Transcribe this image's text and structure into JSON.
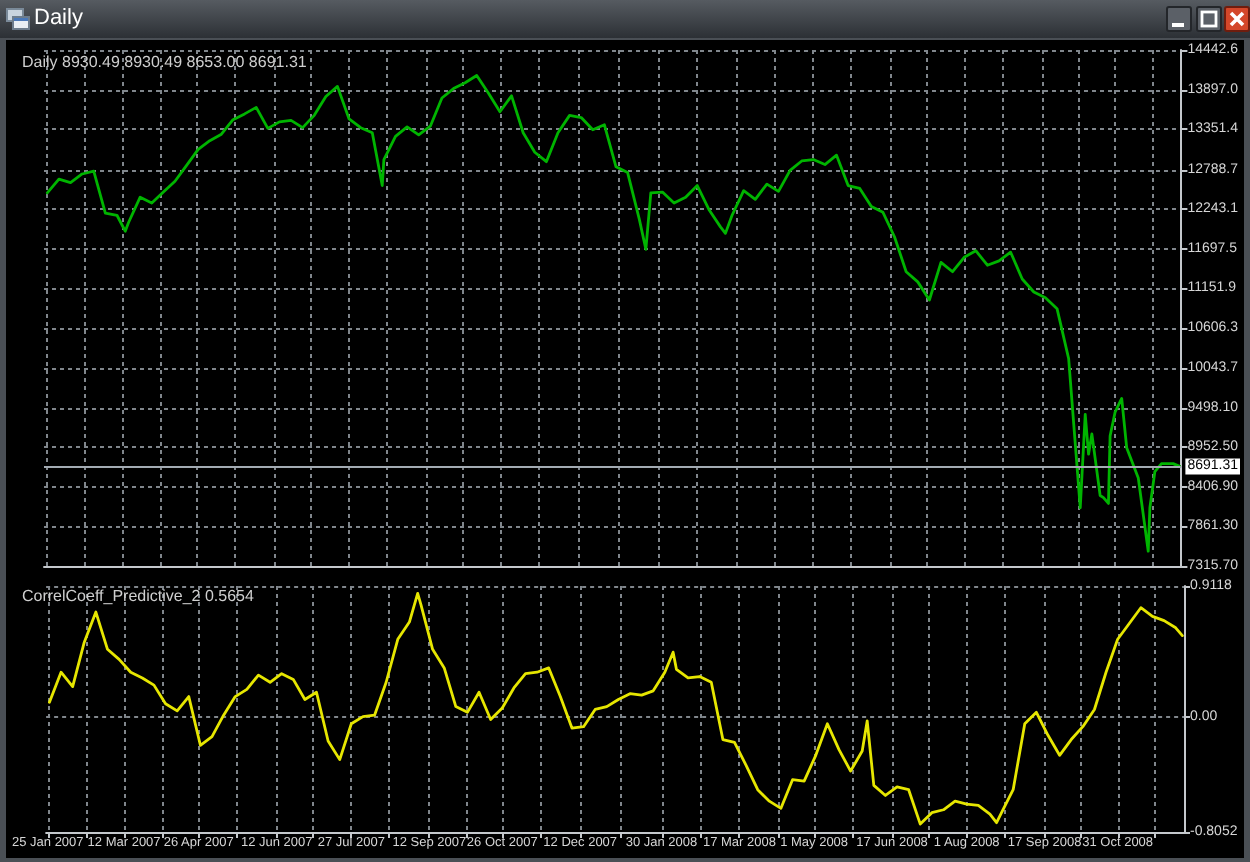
{
  "chart_data": [
    {
      "type": "line",
      "title": "Daily 8930.49 8930.49 8653.00 8691.31",
      "annotations": [
        "Daily"
      ],
      "x": [
        "2007-01-26",
        "2007-02-02",
        "2007-02-09",
        "2007-02-16",
        "2007-02-23",
        "2007-03-02",
        "2007-03-09",
        "2007-03-14",
        "2007-03-16",
        "2007-03-23",
        "2007-03-30",
        "2007-04-06",
        "2007-04-13",
        "2007-04-20",
        "2007-04-27",
        "2007-05-04",
        "2007-05-11",
        "2007-05-18",
        "2007-05-25",
        "2007-06-01",
        "2007-06-08",
        "2007-06-15",
        "2007-06-22",
        "2007-06-29",
        "2007-07-06",
        "2007-07-13",
        "2007-07-20",
        "2007-07-27",
        "2007-08-03",
        "2007-08-10",
        "2007-08-16",
        "2007-08-17",
        "2007-08-24",
        "2007-08-31",
        "2007-09-07",
        "2007-09-14",
        "2007-09-21",
        "2007-09-28",
        "2007-10-05",
        "2007-10-12",
        "2007-10-19",
        "2007-10-26",
        "2007-11-02",
        "2007-11-09",
        "2007-11-16",
        "2007-11-23",
        "2007-11-30",
        "2007-12-07",
        "2007-12-14",
        "2007-12-21",
        "2007-12-28",
        "2008-01-04",
        "2008-01-11",
        "2008-01-18",
        "2008-01-22",
        "2008-01-25",
        "2008-02-01",
        "2008-02-08",
        "2008-02-15",
        "2008-02-22",
        "2008-02-29",
        "2008-03-07",
        "2008-03-10",
        "2008-03-14",
        "2008-03-21",
        "2008-03-28",
        "2008-04-04",
        "2008-04-11",
        "2008-04-18",
        "2008-04-25",
        "2008-05-02",
        "2008-05-09",
        "2008-05-16",
        "2008-05-23",
        "2008-05-30",
        "2008-06-06",
        "2008-06-13",
        "2008-06-20",
        "2008-06-27",
        "2008-07-04",
        "2008-07-11",
        "2008-07-18",
        "2008-07-25",
        "2008-08-01",
        "2008-08-08",
        "2008-08-15",
        "2008-08-22",
        "2008-08-29",
        "2008-09-05",
        "2008-09-12",
        "2008-09-19",
        "2008-09-26",
        "2008-10-03",
        "2008-10-10",
        "2008-10-13",
        "2008-10-15",
        "2008-10-17",
        "2008-10-22",
        "2008-10-24",
        "2008-10-27",
        "2008-10-28",
        "2008-10-31",
        "2008-11-04",
        "2008-11-07",
        "2008-11-14",
        "2008-11-20",
        "2008-11-21",
        "2008-11-24",
        "2008-11-28",
        "2008-12-05",
        "2008-12-09"
      ],
      "series": [
        {
          "color": "#00b400",
          "values": [
            12470,
            12660,
            12610,
            12730,
            12770,
            12190,
            12160,
            11940,
            12060,
            12410,
            12330,
            12480,
            12630,
            12850,
            13070,
            13190,
            13280,
            13480,
            13560,
            13650,
            13360,
            13450,
            13470,
            13370,
            13540,
            13800,
            13940,
            13490,
            13370,
            13300,
            12570,
            12930,
            13250,
            13380,
            13270,
            13390,
            13780,
            13910,
            13990,
            14090,
            13850,
            13590,
            13810,
            13300,
            13030,
            12900,
            13300,
            13540,
            13510,
            13340,
            13410,
            12830,
            12750,
            12110,
            11690,
            12470,
            12480,
            12330,
            12410,
            12570,
            12240,
            12000,
            11910,
            12160,
            12500,
            12380,
            12590,
            12490,
            12780,
            12910,
            12930,
            12860,
            12990,
            12570,
            12530,
            12280,
            12200,
            11860,
            11380,
            11240,
            10990,
            11510,
            11380,
            11580,
            11670,
            11470,
            11530,
            11650,
            11280,
            11100,
            11020,
            10870,
            10180,
            8120,
            9410,
            8860,
            9140,
            8290,
            8260,
            8180,
            9110,
            9440,
            9630,
            8950,
            8530,
            7520,
            8120,
            8620,
            8730,
            8730,
            8691.31
          ]
        }
      ],
      "xlim": [
        "2007-01-24",
        "2008-12-10"
      ],
      "xticks": [
        {
          "value": "2007-01-25",
          "label": null
        },
        {
          "value": "2007-02-17",
          "label": null
        },
        {
          "value": "2007-03-12",
          "label": null
        },
        {
          "value": "2007-04-04",
          "label": null
        },
        {
          "value": "2007-04-26",
          "label": null
        },
        {
          "value": "2007-05-19",
          "label": null
        },
        {
          "value": "2007-06-12",
          "label": null
        },
        {
          "value": "2007-07-04",
          "label": null
        },
        {
          "value": "2007-07-27",
          "label": null
        },
        {
          "value": "2007-08-19",
          "label": null
        },
        {
          "value": "2007-09-12",
          "label": null
        },
        {
          "value": "2007-10-04",
          "label": null
        },
        {
          "value": "2007-10-26",
          "label": null
        },
        {
          "value": "2007-11-18",
          "label": null
        },
        {
          "value": "2007-12-12",
          "label": null
        },
        {
          "value": "2008-01-05",
          "label": null
        },
        {
          "value": "2008-01-30",
          "label": null
        },
        {
          "value": "2008-02-22",
          "label": null
        },
        {
          "value": "2008-03-17",
          "label": null
        },
        {
          "value": "2008-04-09",
          "label": null
        },
        {
          "value": "2008-05-01",
          "label": null
        },
        {
          "value": "2008-05-24",
          "label": null
        },
        {
          "value": "2008-06-17",
          "label": null
        },
        {
          "value": "2008-07-09",
          "label": null
        },
        {
          "value": "2008-08-01",
          "label": null
        },
        {
          "value": "2008-08-24",
          "label": null
        },
        {
          "value": "2008-09-17",
          "label": null
        },
        {
          "value": "2008-10-09",
          "label": null
        },
        {
          "value": "2008-10-31",
          "label": null
        },
        {
          "value": "2008-11-22",
          "label": null
        }
      ],
      "ylim": [
        7315.7,
        14442.6
      ],
      "yticks": [
        {
          "value": 7315.7,
          "label": "7315.70"
        },
        {
          "value": 7861.3,
          "label": "7861.30"
        },
        {
          "value": 8406.9,
          "label": "8406.90"
        },
        {
          "value": 8952.5,
          "label": "8952.50"
        },
        {
          "value": 9498.1,
          "label": "9498.10"
        },
        10043.7,
        10606.3,
        11151.9,
        11697.5,
        12243.1,
        12788.7,
        13351.4,
        {
          "value": 13897,
          "label": "13897.0"
        },
        14442.6
      ],
      "grid": true,
      "tick_labels": "y",
      "ref_lines": [
        {
          "axis": "y",
          "value": 8691.31,
          "label": "8691.31",
          "color": "#a3abb3"
        }
      ]
    },
    {
      "type": "line",
      "title": "CorrelCoeff_Predictive_2 0.5654",
      "x": [
        "2007-01-26",
        "2007-02-02",
        "2007-02-09",
        "2007-02-16",
        "2007-02-23",
        "2007-03-02",
        "2007-03-09",
        "2007-03-16",
        "2007-03-23",
        "2007-03-30",
        "2007-04-06",
        "2007-04-13",
        "2007-04-20",
        "2007-04-27",
        "2007-05-04",
        "2007-05-11",
        "2007-05-18",
        "2007-05-25",
        "2007-06-01",
        "2007-06-08",
        "2007-06-15",
        "2007-06-22",
        "2007-06-29",
        "2007-07-06",
        "2007-07-13",
        "2007-07-20",
        "2007-07-27",
        "2007-08-03",
        "2007-08-10",
        "2007-08-17",
        "2007-08-24",
        "2007-08-31",
        "2007-09-05",
        "2007-09-07",
        "2007-09-14",
        "2007-09-21",
        "2007-09-28",
        "2007-10-05",
        "2007-10-12",
        "2007-10-19",
        "2007-10-26",
        "2007-11-02",
        "2007-11-09",
        "2007-11-16",
        "2007-11-23",
        "2007-11-30",
        "2007-12-07",
        "2007-12-14",
        "2007-12-21",
        "2007-12-28",
        "2008-01-04",
        "2008-01-11",
        "2008-01-18",
        "2008-01-25",
        "2008-02-01",
        "2008-02-06",
        "2008-02-08",
        "2008-02-15",
        "2008-02-22",
        "2008-02-29",
        "2008-03-07",
        "2008-03-14",
        "2008-03-21",
        "2008-03-28",
        "2008-04-04",
        "2008-04-11",
        "2008-04-18",
        "2008-04-25",
        "2008-05-02",
        "2008-05-09",
        "2008-05-16",
        "2008-05-23",
        "2008-05-30",
        "2008-06-02",
        "2008-06-06",
        "2008-06-13",
        "2008-06-20",
        "2008-06-27",
        "2008-07-04",
        "2008-07-11",
        "2008-07-18",
        "2008-07-25",
        "2008-08-01",
        "2008-08-08",
        "2008-08-15",
        "2008-08-19",
        "2008-08-22",
        "2008-08-29",
        "2008-09-05",
        "2008-09-12",
        "2008-09-19",
        "2008-09-26",
        "2008-10-03",
        "2008-10-10",
        "2008-10-17",
        "2008-10-24",
        "2008-10-31",
        "2008-11-07",
        "2008-11-14",
        "2008-11-21",
        "2008-11-28",
        "2008-12-05",
        "2008-12-09"
      ],
      "series": [
        {
          "color": "#e6e600",
          "values": [
            0.1,
            0.31,
            0.21,
            0.52,
            0.73,
            0.47,
            0.4,
            0.31,
            0.27,
            0.22,
            0.09,
            0.04,
            0.14,
            -0.2,
            -0.14,
            0.01,
            0.14,
            0.19,
            0.29,
            0.24,
            0.3,
            0.26,
            0.12,
            0.17,
            -0.17,
            -0.3,
            -0.05,
            0.0,
            0.01,
            0.24,
            0.54,
            0.66,
            0.86,
            0.78,
            0.47,
            0.34,
            0.07,
            0.03,
            0.17,
            -0.02,
            0.06,
            0.2,
            0.3,
            0.31,
            0.34,
            0.14,
            -0.08,
            -0.07,
            0.05,
            0.07,
            0.12,
            0.16,
            0.15,
            0.18,
            0.31,
            0.45,
            0.33,
            0.27,
            0.28,
            0.24,
            -0.16,
            -0.18,
            -0.34,
            -0.51,
            -0.59,
            -0.64,
            -0.44,
            -0.45,
            -0.27,
            -0.05,
            -0.23,
            -0.38,
            -0.24,
            -0.03,
            -0.48,
            -0.55,
            -0.49,
            -0.51,
            -0.75,
            -0.67,
            -0.65,
            -0.59,
            -0.61,
            -0.62,
            -0.68,
            -0.74,
            -0.67,
            -0.51,
            -0.05,
            0.03,
            -0.13,
            -0.27,
            -0.16,
            -0.07,
            0.05,
            0.31,
            0.54,
            0.65,
            0.76,
            0.7,
            0.67,
            0.62,
            0.5654
          ]
        }
      ],
      "xlim": [
        "2007-01-24",
        "2008-12-10"
      ],
      "xticks": [
        {
          "value": "2007-01-25",
          "label": "25 Jan 2007"
        },
        {
          "value": "2007-02-17",
          "label": null
        },
        {
          "value": "2007-03-12",
          "label": "12 Mar 2007"
        },
        {
          "value": "2007-04-04",
          "label": null
        },
        {
          "value": "2007-04-26",
          "label": "26 Apr 2007"
        },
        {
          "value": "2007-05-19",
          "label": null
        },
        {
          "value": "2007-06-12",
          "label": "12 Jun 2007"
        },
        {
          "value": "2007-07-04",
          "label": null
        },
        {
          "value": "2007-07-27",
          "label": "27 Jul 2007"
        },
        {
          "value": "2007-08-19",
          "label": null
        },
        {
          "value": "2007-09-12",
          "label": "12 Sep 2007"
        },
        {
          "value": "2007-10-04",
          "label": null
        },
        {
          "value": "2007-10-26",
          "label": "26 Oct 2007"
        },
        {
          "value": "2007-11-18",
          "label": null
        },
        {
          "value": "2007-12-12",
          "label": "12 Dec 2007"
        },
        {
          "value": "2008-01-05",
          "label": null
        },
        {
          "value": "2008-01-30",
          "label": "30 Jan 2008"
        },
        {
          "value": "2008-02-22",
          "label": null
        },
        {
          "value": "2008-03-17",
          "label": "17 Mar 2008"
        },
        {
          "value": "2008-04-09",
          "label": null
        },
        {
          "value": "2008-05-01",
          "label": "1 May 2008"
        },
        {
          "value": "2008-05-24",
          "label": null
        },
        {
          "value": "2008-06-17",
          "label": "17 Jun 2008"
        },
        {
          "value": "2008-07-09",
          "label": null
        },
        {
          "value": "2008-08-01",
          "label": "1 Aug 2008"
        },
        {
          "value": "2008-08-24",
          "label": null
        },
        {
          "value": "2008-09-17",
          "label": "17 Sep 2008"
        },
        {
          "value": "2008-10-09",
          "label": null
        },
        {
          "value": "2008-10-31",
          "label": "31 Oct 2008"
        },
        {
          "value": "2008-11-22",
          "label": null
        }
      ],
      "ylim": [
        -0.8052,
        0.9118
      ],
      "yticks": [
        -0.8052,
        {
          "value": 0,
          "label": "0.00"
        },
        0.9118
      ],
      "grid": true
    }
  ]
}
